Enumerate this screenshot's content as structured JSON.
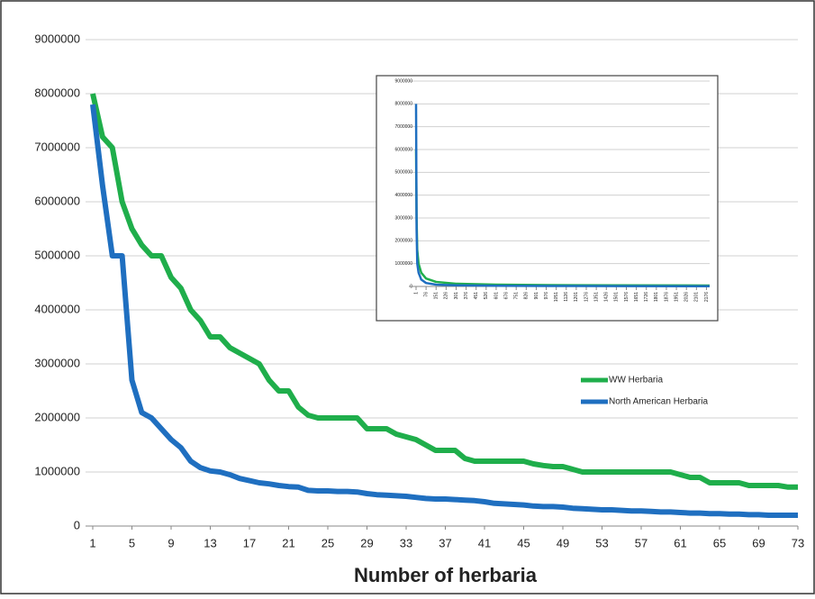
{
  "chart_data": [
    {
      "type": "line",
      "x_label": "Number of herbaria",
      "x": [
        1,
        2,
        3,
        4,
        5,
        6,
        7,
        8,
        9,
        10,
        11,
        12,
        13,
        14,
        15,
        16,
        17,
        18,
        19,
        20,
        21,
        22,
        23,
        24,
        25,
        26,
        27,
        28,
        29,
        30,
        31,
        32,
        33,
        34,
        35,
        36,
        37,
        38,
        39,
        40,
        41,
        42,
        43,
        44,
        45,
        46,
        47,
        48,
        49,
        50,
        51,
        52,
        53,
        54,
        55,
        56,
        57,
        58,
        59,
        60,
        61,
        62,
        63,
        64,
        65,
        66,
        67,
        68,
        69,
        70,
        71,
        72,
        73
      ],
      "xlim": [
        1,
        73
      ],
      "xticks": [
        1,
        5,
        9,
        13,
        17,
        21,
        25,
        29,
        33,
        37,
        41,
        45,
        49,
        53,
        57,
        61,
        65,
        69,
        73
      ],
      "ylim": [
        0,
        9000000
      ],
      "yticks": [
        0,
        1000000,
        2000000,
        3000000,
        4000000,
        5000000,
        6000000,
        7000000,
        8000000,
        9000000
      ],
      "grid": true,
      "legend": "right",
      "series": [
        {
          "name": "WW Herbaria",
          "color": "#1fae4b",
          "values": [
            8000000,
            7200000,
            7000000,
            6000000,
            5500000,
            5200000,
            5000000,
            5000000,
            4600000,
            4400000,
            4000000,
            3800000,
            3500000,
            3500000,
            3300000,
            3200000,
            3100000,
            3000000,
            2700000,
            2500000,
            2500000,
            2200000,
            2050000,
            2000000,
            2000000,
            2000000,
            2000000,
            2000000,
            1800000,
            1800000,
            1800000,
            1700000,
            1650000,
            1600000,
            1500000,
            1400000,
            1400000,
            1400000,
            1250000,
            1200000,
            1200000,
            1200000,
            1200000,
            1200000,
            1200000,
            1150000,
            1120000,
            1100000,
            1100000,
            1050000,
            1000000,
            1000000,
            1000000,
            1000000,
            1000000,
            1000000,
            1000000,
            1000000,
            1000000,
            1000000,
            950000,
            900000,
            900000,
            800000,
            800000,
            800000,
            800000,
            750000,
            750000,
            750000,
            750000,
            720000,
            720000
          ]
        },
        {
          "name": "North American Herbaria",
          "color": "#1f6fc0",
          "values": [
            7800000,
            6300000,
            5000000,
            5000000,
            2700000,
            2100000,
            2000000,
            1800000,
            1600000,
            1450000,
            1200000,
            1080000,
            1020000,
            1000000,
            950000,
            880000,
            840000,
            800000,
            780000,
            750000,
            730000,
            720000,
            660000,
            650000,
            650000,
            640000,
            640000,
            630000,
            600000,
            580000,
            570000,
            560000,
            550000,
            530000,
            510000,
            500000,
            500000,
            490000,
            480000,
            470000,
            450000,
            420000,
            410000,
            400000,
            390000,
            370000,
            360000,
            360000,
            350000,
            330000,
            320000,
            310000,
            300000,
            300000,
            290000,
            280000,
            280000,
            270000,
            260000,
            260000,
            250000,
            240000,
            240000,
            230000,
            230000,
            220000,
            220000,
            210000,
            210000,
            200000,
            200000,
            200000,
            200000
          ]
        }
      ]
    },
    {
      "type": "line",
      "x": [
        1,
        5,
        10,
        20,
        40,
        76,
        151,
        300,
        600,
        1000,
        1500,
        2200
      ],
      "xlim": [
        1,
        2200
      ],
      "xticks": [
        1,
        76,
        151,
        226,
        301,
        376,
        451,
        526,
        601,
        676,
        751,
        826,
        901,
        976,
        1051,
        1126,
        1201,
        1276,
        1351,
        1426,
        1501,
        1576,
        1651,
        1726,
        1801,
        1876,
        1951,
        2026,
        2101,
        2176
      ],
      "ylim": [
        0,
        9000000
      ],
      "yticks": [
        0,
        1000000,
        2000000,
        3000000,
        4000000,
        5000000,
        6000000,
        7000000,
        8000000,
        9000000
      ],
      "grid": true,
      "series": [
        {
          "name": "WW Herbaria",
          "color": "#1fae4b",
          "values": [
            6000000,
            3000000,
            1600000,
            1000000,
            600000,
            350000,
            200000,
            120000,
            80000,
            60000,
            50000,
            40000
          ]
        },
        {
          "name": "North American Herbaria",
          "color": "#1f6fc0",
          "values": [
            8000000,
            2500000,
            1000000,
            600000,
            300000,
            150000,
            80000,
            50000,
            30000,
            20000,
            15000,
            10000
          ]
        }
      ]
    }
  ]
}
